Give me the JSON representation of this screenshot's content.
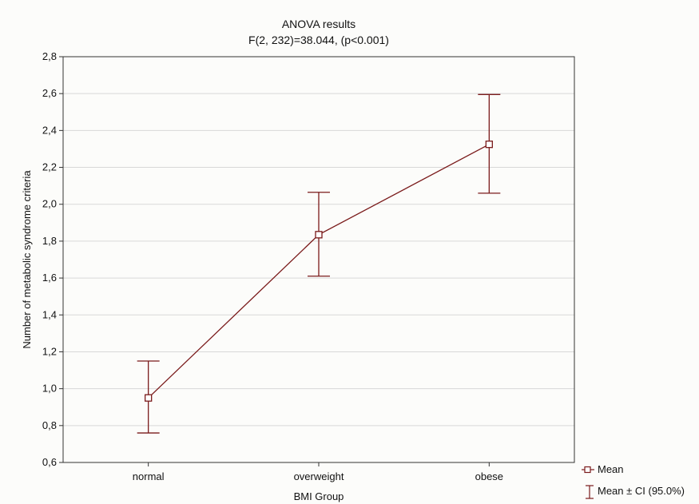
{
  "chart_data": {
    "type": "line",
    "title": "ANOVA results",
    "subtitle": "F(2, 232)=38.044,    (p<0.001)",
    "xlabel": "BMI Group",
    "ylabel": "Number of metabolic syndrome criteria",
    "categories": [
      "normal",
      "overweight",
      "obese"
    ],
    "series": [
      {
        "name": "Mean",
        "values": [
          0.95,
          1.835,
          2.325
        ],
        "ci_lower": [
          0.76,
          1.61,
          2.06
        ],
        "ci_upper": [
          1.15,
          2.065,
          2.595
        ]
      }
    ],
    "ylim": [
      0.6,
      2.8
    ],
    "yticks": [
      0.6,
      0.8,
      1.0,
      1.2,
      1.4,
      1.6,
      1.8,
      2.0,
      2.2,
      2.4,
      2.6,
      2.8
    ],
    "ytick_labels": [
      "0,6",
      "0,8",
      "1,0",
      "1,2",
      "1,4",
      "1,6",
      "1,8",
      "2,0",
      "2,2",
      "2,4",
      "2,6",
      "2,8"
    ],
    "grid": "horizontal",
    "legend": {
      "placement": "bottom-right",
      "entries": [
        {
          "symbol": "square-marker",
          "label": "Mean"
        },
        {
          "symbol": "error-bar",
          "label": "Mean ± CI (95.0%)"
        }
      ]
    },
    "colors": {
      "series": "#7a1a1a",
      "grid": "#d8d8d8",
      "axis": "#333333",
      "background": "#fcfcfa"
    }
  }
}
